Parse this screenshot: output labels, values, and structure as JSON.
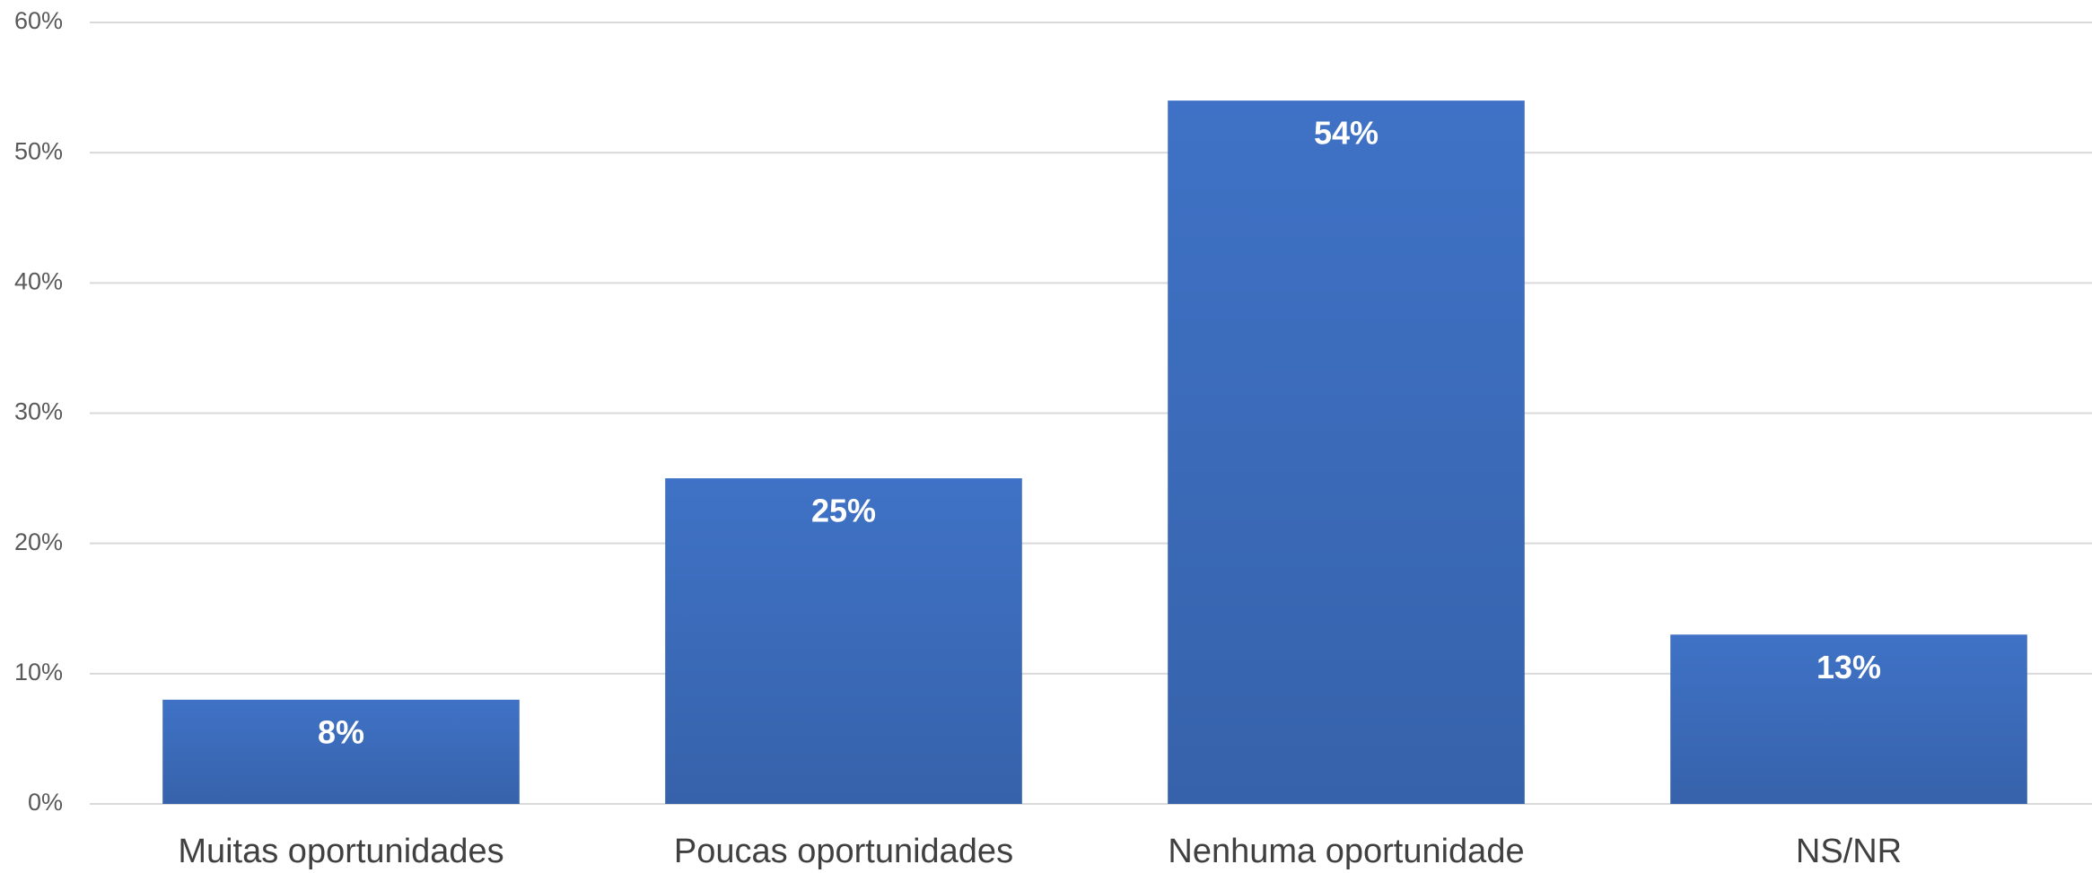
{
  "chart_data": {
    "type": "bar",
    "categories": [
      "Muitas oportunidades",
      "Poucas oportunidades",
      "Nenhuma oportunidade",
      "NS/NR"
    ],
    "values": [
      8,
      25,
      54,
      13
    ],
    "value_labels": [
      "8%",
      "25%",
      "54%",
      "13%"
    ],
    "color": "#3f72c6",
    "ylim": [
      0,
      60
    ],
    "yticks": [
      {
        "value": 0,
        "label": "0%"
      },
      {
        "value": 10,
        "label": "10%"
      },
      {
        "value": 20,
        "label": "20%"
      },
      {
        "value": 30,
        "label": "30%"
      },
      {
        "value": 40,
        "label": "40%"
      },
      {
        "value": 50,
        "label": "50%"
      },
      {
        "value": 60,
        "label": "60%"
      }
    ],
    "grid": true
  }
}
